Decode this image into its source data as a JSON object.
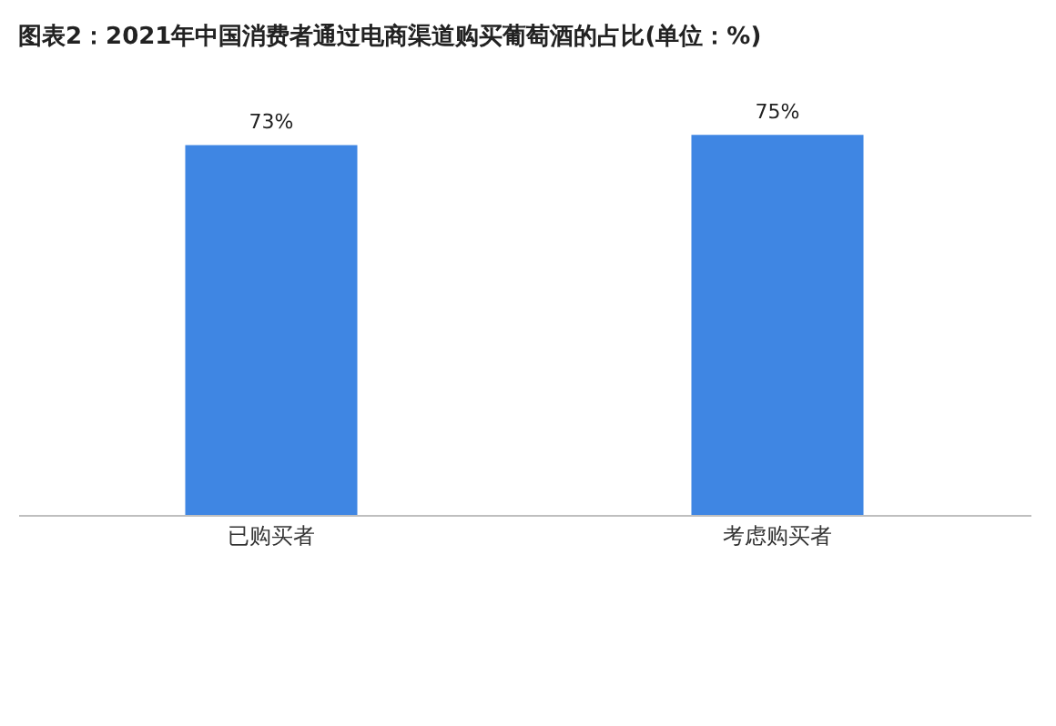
{
  "chart_data": {
    "type": "bar",
    "title": "图表2：2021年中国消费者通过电商渠道购买葡萄酒的占比(单位：%)",
    "categories": [
      "已购买者",
      "考虑购买者"
    ],
    "series": [
      {
        "color": "#3f86e3",
        "values": [
          73,
          75
        ],
        "value_labels": [
          "73%",
          "75%"
        ]
      }
    ]
  }
}
